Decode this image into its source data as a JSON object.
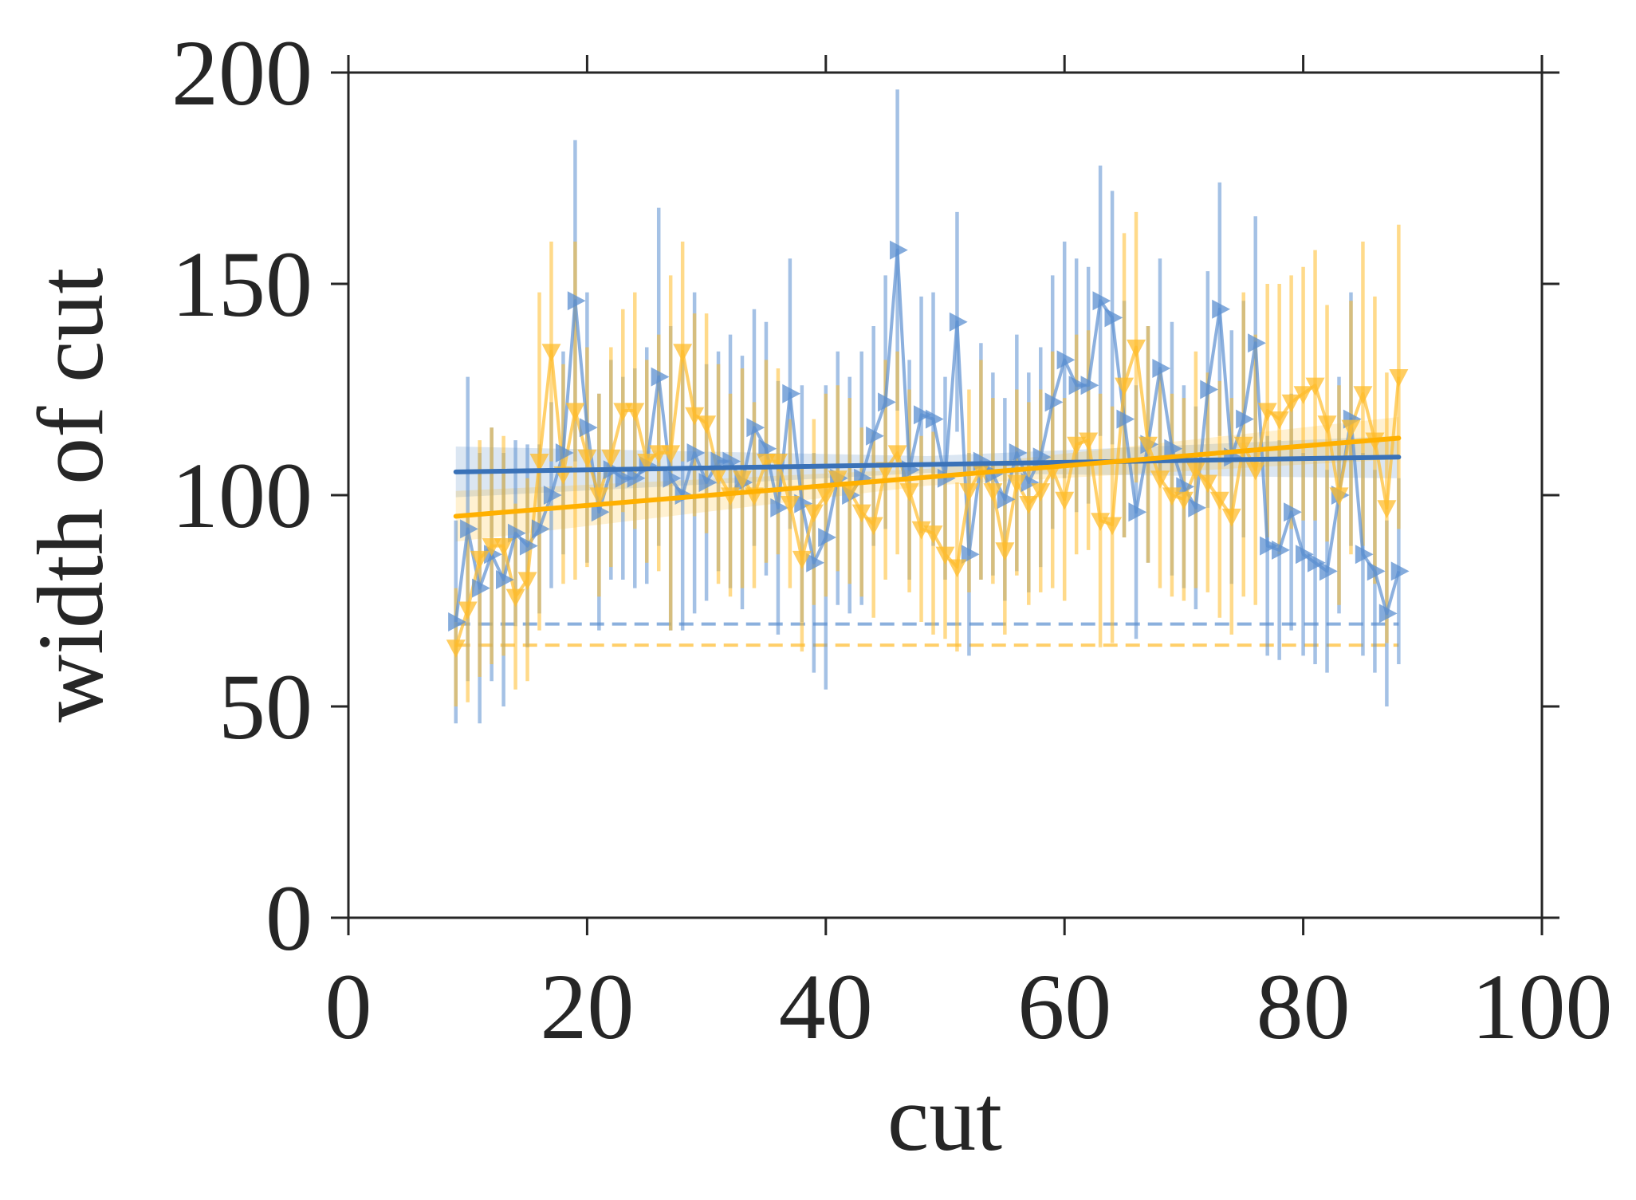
{
  "chart_data": {
    "type": "line",
    "title": "",
    "xlabel": "cut",
    "ylabel": "width of cut",
    "xlim": [
      0,
      100
    ],
    "ylim": [
      0,
      200
    ],
    "xticks": [
      0,
      20,
      40,
      60,
      80,
      100
    ],
    "yticks": [
      0,
      50,
      100,
      150,
      200
    ],
    "xtick_labels": [
      "0",
      "20",
      "40",
      "60",
      "80",
      "100"
    ],
    "ytick_labels": [
      "0",
      "50",
      "100",
      "150",
      "200"
    ],
    "grid": false,
    "legend": "none",
    "x": [
      9,
      10,
      11,
      12,
      13,
      14,
      15,
      16,
      17,
      18,
      19,
      20,
      21,
      22,
      23,
      24,
      25,
      26,
      27,
      28,
      29,
      30,
      31,
      32,
      33,
      34,
      35,
      36,
      37,
      38,
      39,
      40,
      41,
      42,
      43,
      44,
      45,
      46,
      47,
      48,
      49,
      50,
      51,
      52,
      53,
      54,
      55,
      56,
      57,
      58,
      59,
      60,
      61,
      62,
      63,
      64,
      65,
      66,
      67,
      68,
      69,
      70,
      71,
      72,
      73,
      74,
      75,
      76,
      77,
      78,
      79,
      80,
      81,
      82,
      83,
      84,
      85,
      86,
      87,
      88
    ],
    "series": [
      {
        "color": "#5b8fd0",
        "marker": "triangle-right",
        "values": [
          70,
          92,
          78,
          86,
          80,
          91,
          88,
          92,
          100,
          110,
          146,
          116,
          96,
          106,
          104,
          104,
          107,
          128,
          104,
          100,
          110,
          103,
          108,
          108,
          103,
          116,
          111,
          97,
          124,
          98,
          84,
          90,
          104,
          100,
          104,
          114,
          122,
          158,
          106,
          119,
          118,
          104,
          141,
          86,
          108,
          105,
          99,
          110,
          103,
          109,
          122,
          132,
          126,
          126,
          146,
          142,
          118,
          96,
          112,
          130,
          111,
          102,
          97,
          125,
          144,
          109,
          118,
          136,
          88,
          87,
          96,
          86,
          84,
          82,
          100,
          118,
          86,
          82,
          72,
          82
        ],
        "err": [
          24,
          36,
          32,
          30,
          30,
          22,
          24,
          20,
          22,
          24,
          38,
          32,
          28,
          26,
          24,
          26,
          28,
          40,
          36,
          32,
          38,
          28,
          26,
          30,
          30,
          28,
          30,
          30,
          32,
          28,
          26,
          36,
          30,
          28,
          30,
          26,
          30,
          38,
          26,
          28,
          30,
          24,
          26,
          24,
          28,
          24,
          24,
          28,
          26,
          26,
          30,
          28,
          30,
          28,
          32,
          30,
          28,
          30,
          28,
          26,
          30,
          24,
          24,
          28,
          30,
          30,
          28,
          30,
          26,
          26,
          28,
          24,
          24,
          24,
          28,
          30,
          24,
          24,
          22,
          22
        ]
      },
      {
        "color": "#ffbc2b",
        "marker": "triangle-down",
        "values": [
          64,
          73,
          85,
          88,
          88,
          76,
          80,
          108,
          134,
          105,
          120,
          109,
          100,
          109,
          120,
          120,
          108,
          110,
          110,
          134,
          119,
          117,
          105,
          100,
          104,
          100,
          108,
          108,
          98,
          85,
          96,
          100,
          104,
          101,
          96,
          93,
          106,
          110,
          101,
          92,
          91,
          86,
          83,
          101,
          106,
          101,
          87,
          103,
          98,
          101,
          106,
          99,
          112,
          113,
          94,
          93,
          126,
          135,
          112,
          104,
          100,
          99,
          106,
          103,
          99,
          95,
          112,
          106,
          120,
          118,
          122,
          124,
          126,
          117,
          100,
          116,
          124,
          113,
          97,
          128
        ],
        "err": [
          14,
          22,
          28,
          28,
          26,
          22,
          24,
          40,
          26,
          26,
          40,
          26,
          24,
          26,
          24,
          28,
          24,
          28,
          42,
          26,
          24,
          26,
          26,
          24,
          26,
          22,
          24,
          22,
          20,
          22,
          22,
          24,
          22,
          22,
          20,
          22,
          26,
          24,
          24,
          22,
          24,
          20,
          20,
          24,
          26,
          22,
          20,
          22,
          24,
          24,
          28,
          24,
          26,
          26,
          30,
          28,
          36,
          32,
          28,
          26,
          24,
          24,
          28,
          26,
          28,
          28,
          36,
          32,
          30,
          32,
          30,
          30,
          32,
          28,
          26,
          30,
          36,
          34,
          32,
          36
        ]
      }
    ],
    "trend_lines": [
      {
        "color": "#3a72b8",
        "x": [
          9,
          88
        ],
        "y": [
          105.5,
          109
        ]
      },
      {
        "color": "#ffb000",
        "x": [
          9,
          88
        ],
        "y": [
          95,
          113.5
        ]
      }
    ],
    "baselines": [
      {
        "color": "#5b8fd0",
        "y": 69.5
      },
      {
        "color": "#ffbc2b",
        "y": 64.5
      }
    ]
  }
}
